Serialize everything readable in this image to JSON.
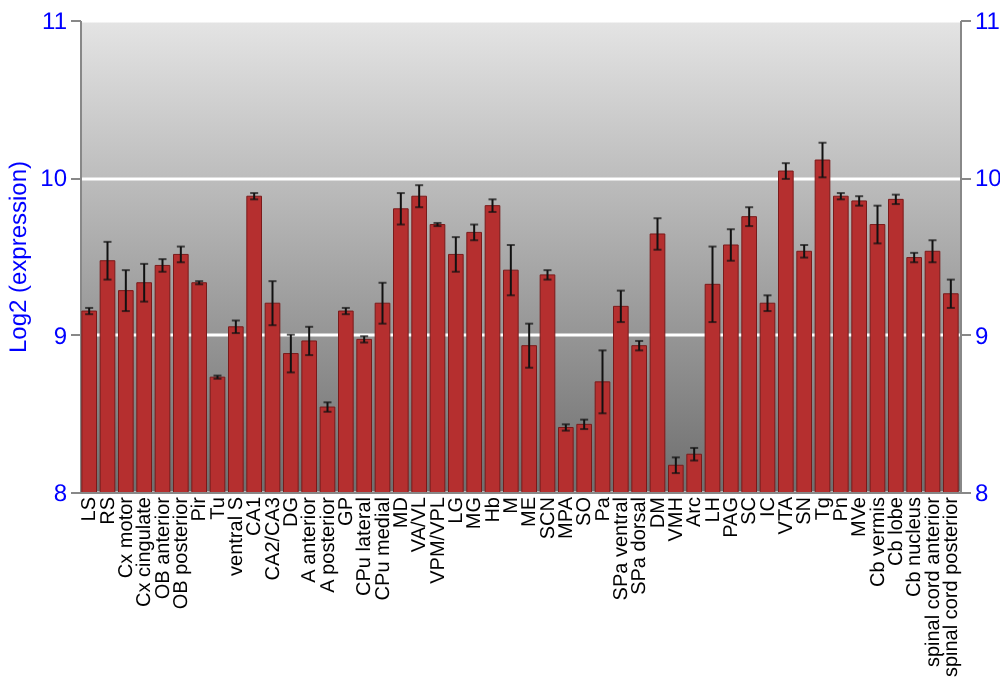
{
  "chart_data": {
    "type": "bar",
    "ylabel": "Log2 (expression)",
    "categories": [
      "LS",
      "RS",
      "Cx motor",
      "Cx cingulate",
      "OB anterior",
      "OB posterior",
      "Pir",
      "Tu",
      "ventral S",
      "CA1",
      "CA2/CA3",
      "DG",
      "A anterior",
      "A posterior",
      "GP",
      "CPu lateral",
      "CPu medial",
      "MD",
      "VA/VL",
      "VPM/VPL",
      "LG",
      "MG",
      "Hb",
      "M",
      "ME",
      "SCN",
      "MPA",
      "SO",
      "Pa",
      "SPa ventral",
      "SPa dorsal",
      "DM",
      "VMH",
      "Arc",
      "LH",
      "PAG",
      "SC",
      "IC",
      "VTA",
      "SN",
      "Tg",
      "Pn",
      "MVe",
      "Cb vermis",
      "Cb lobe",
      "Cb nucleus",
      "spinal cord anterior",
      "spinal cord posterior"
    ],
    "values": [
      9.15,
      9.47,
      9.28,
      9.33,
      9.44,
      9.51,
      9.33,
      8.73,
      9.05,
      9.88,
      9.2,
      8.88,
      8.96,
      8.54,
      9.15,
      8.97,
      9.2,
      9.8,
      9.88,
      9.7,
      9.51,
      9.65,
      9.82,
      9.41,
      8.93,
      9.38,
      8.41,
      8.43,
      8.7,
      9.18,
      8.93,
      9.64,
      8.17,
      8.24,
      9.32,
      9.57,
      9.75,
      9.2,
      10.04,
      9.53,
      10.11,
      9.88,
      9.85,
      9.7,
      9.86,
      9.49,
      9.53,
      9.26
    ],
    "errors": [
      0.02,
      0.12,
      0.13,
      0.12,
      0.04,
      0.05,
      0.01,
      0.01,
      0.04,
      0.02,
      0.14,
      0.12,
      0.09,
      0.03,
      0.02,
      0.02,
      0.13,
      0.1,
      0.07,
      0.01,
      0.11,
      0.05,
      0.04,
      0.16,
      0.14,
      0.03,
      0.02,
      0.03,
      0.2,
      0.1,
      0.03,
      0.1,
      0.05,
      0.04,
      0.24,
      0.1,
      0.06,
      0.05,
      0.05,
      0.04,
      0.11,
      0.02,
      0.03,
      0.12,
      0.03,
      0.03,
      0.07,
      0.09
    ],
    "color": "#b52f2f",
    "ylim": [
      8,
      11
    ],
    "yticks": [
      8,
      9,
      10,
      11
    ],
    "y2lim": [
      8,
      11
    ],
    "y2ticks": [
      8,
      9,
      10,
      11
    ],
    "grid": "y"
  }
}
